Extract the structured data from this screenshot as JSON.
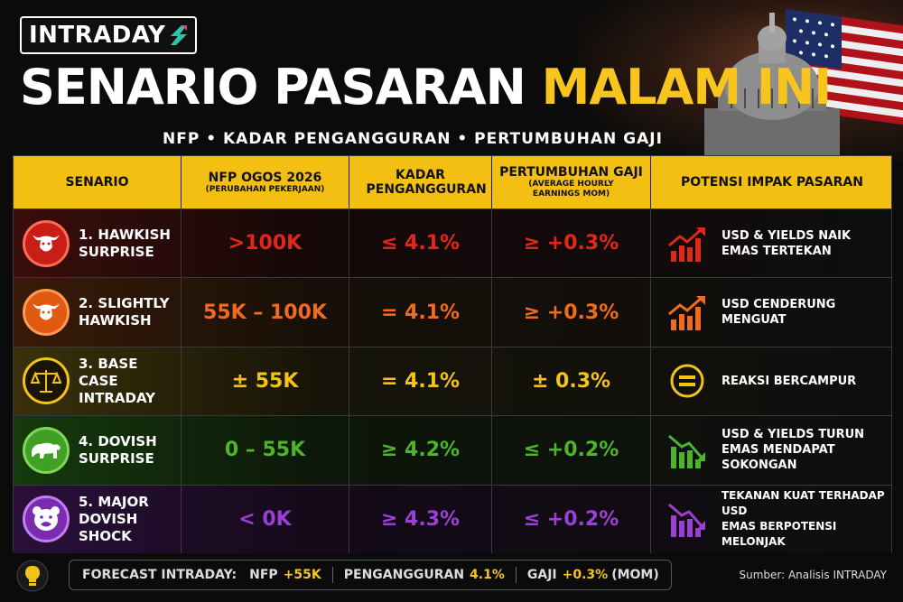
{
  "brand": {
    "logo_text": "INTRADAY"
  },
  "title": {
    "part1": "SENARIO PASARAN",
    "part2": "MALAM INI"
  },
  "subtitle": "NFP • KADAR PENGANGGURAN • PERTUMBUHAN GAJI",
  "table": {
    "headers": [
      {
        "main": "SENARIO",
        "sub": ""
      },
      {
        "main": "NFP OGOS 2026",
        "sub": "(PERUBAHAN PEKERJAAN)"
      },
      {
        "main": "KADAR PENGANGGURAN",
        "sub": ""
      },
      {
        "main": "PERTUMBUHAN GAJI",
        "sub": "(AVERAGE HOURLY EARNINGS MOM)"
      },
      {
        "main": "POTENSI IMPAK PASARAN",
        "sub": ""
      }
    ],
    "rows": [
      {
        "scenario_line1": "1. HAWKISH",
        "scenario_line2": "SURPRISE",
        "icon": "bull-icon",
        "nfp": ">100K",
        "unemployment": "≤ 4.1%",
        "wage": "≥ +0.3%",
        "impact_line1": "USD & YIELDS NAIK",
        "impact_line2": "EMAS TERTEKAN",
        "impact_line3": "",
        "impact_icon": "chart-up-icon",
        "color": "#e3261c"
      },
      {
        "scenario_line1": "2. SLIGHTLY",
        "scenario_line2": "HAWKISH",
        "icon": "bull-icon",
        "nfp": "55K – 100K",
        "unemployment": "= 4.1%",
        "wage": "≥ +0.3%",
        "impact_line1": "USD CENDERUNG",
        "impact_line2": "MENGUAT",
        "impact_line3": "",
        "impact_icon": "chart-up-icon",
        "color": "#f26a1b"
      },
      {
        "scenario_line1": "3. BASE CASE",
        "scenario_line2": "INTRADAY",
        "icon": "scales-icon",
        "nfp": "± 55K",
        "unemployment": "= 4.1%",
        "wage": "± 0.3%",
        "impact_line1": "REAKSI BERCAMPUR",
        "impact_line2": "",
        "impact_line3": "",
        "impact_icon": "equals-icon",
        "color": "#f4c318"
      },
      {
        "scenario_line1": "4. DOVISH",
        "scenario_line2": "SURPRISE",
        "icon": "bear-icon",
        "nfp": "0 – 55K",
        "unemployment": "≥ 4.2%",
        "wage": "≤ +0.2%",
        "impact_line1": "USD & YIELDS TURUN",
        "impact_line2": "EMAS MENDAPAT",
        "impact_line3": "SOKONGAN",
        "impact_icon": "chart-down-icon",
        "color": "#4cb52a"
      },
      {
        "scenario_line1": "5. MAJOR",
        "scenario_line2": "DOVISH SHOCK",
        "icon": "bear-face-icon",
        "nfp": "< 0K",
        "unemployment": "≥ 4.3%",
        "wage": "≤ +0.2%",
        "impact_line1": "TEKANAN KUAT TERHADAP USD",
        "impact_line2": "EMAS BERPOTENSI MELONJAK",
        "impact_line3": "",
        "impact_icon": "chart-down-icon",
        "color": "#9b3fd6"
      }
    ]
  },
  "footer": {
    "forecast_label": "FORECAST INTRADAY:",
    "nfp_label": "NFP",
    "nfp_value": "+55K",
    "unemp_label": "PENGANGGURAN",
    "unemp_value": "4.1%",
    "wage_label": "GAJI",
    "wage_value": "+0.3%",
    "wage_unit": "(MOM)",
    "source": "Sumber: Analisis INTRADAY"
  }
}
